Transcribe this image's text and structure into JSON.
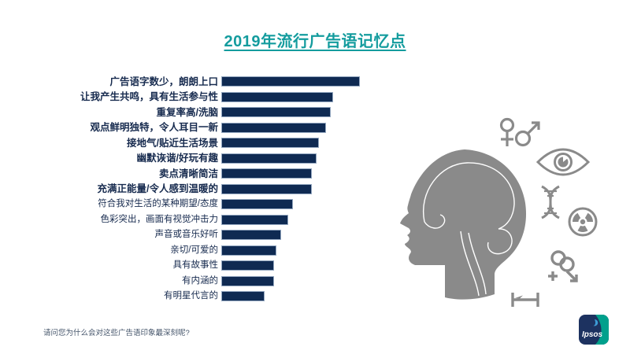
{
  "slide": {
    "title": "2019年流行广告语记忆点",
    "footnote": "请问您为什么会对这些广告语印象最深刻呢?",
    "brand": "Ipsos"
  },
  "colors": {
    "title_teal": "#149c9e",
    "bar_navy": "#0f2a52",
    "label_navy": "#162a4e",
    "graphic_gray": "#8a8a8a",
    "footnote_blue_gray": "#44546a",
    "logo_navy": "#1d3260",
    "logo_teal": "#00a08c",
    "logo_accent_blue": "#3e9bd5"
  },
  "graphic": {
    "description": "gray human head profile silhouette with white brain outline",
    "icon_names": [
      "female-male-gender-icon",
      "eye-icon",
      "dna-icon",
      "radiation-icon",
      "linked-rings-arrow-icon",
      "ruler-icon"
    ]
  },
  "chart_data": {
    "type": "bar",
    "orientation": "horizontal",
    "title": "2019年流行广告语记忆点",
    "categories": [
      "广告语字数少，朗朗上口",
      "让我产生共鸣，具有生活参与性",
      "重复率高/洗脑",
      "观点鲜明独特，令人耳目一新",
      "接地气/贴近生活场景",
      "幽默诙谐/好玩有趣",
      "卖点清晰简洁",
      "充满正能量/令人感到温暖的",
      "符合我对生活的某种期望/态度",
      "色彩突出，画面有视觉冲击力",
      "声音或音乐好听",
      "亲切/可爱的",
      "具有故事性",
      "有内涵的",
      "有明星代言的"
    ],
    "values": [
      58,
      47,
      46,
      44,
      41,
      40,
      38,
      38,
      30,
      28,
      25,
      23,
      22,
      22,
      18
    ],
    "values_note": "no axis or data labels are shown in the image; values estimated from relative bar lengths (percent scale)",
    "bold_count": 8,
    "xlim": [
      0,
      60
    ],
    "axis_shown": false,
    "value_labels_shown": false,
    "grid": false,
    "bar_color": "#0f2a52"
  }
}
